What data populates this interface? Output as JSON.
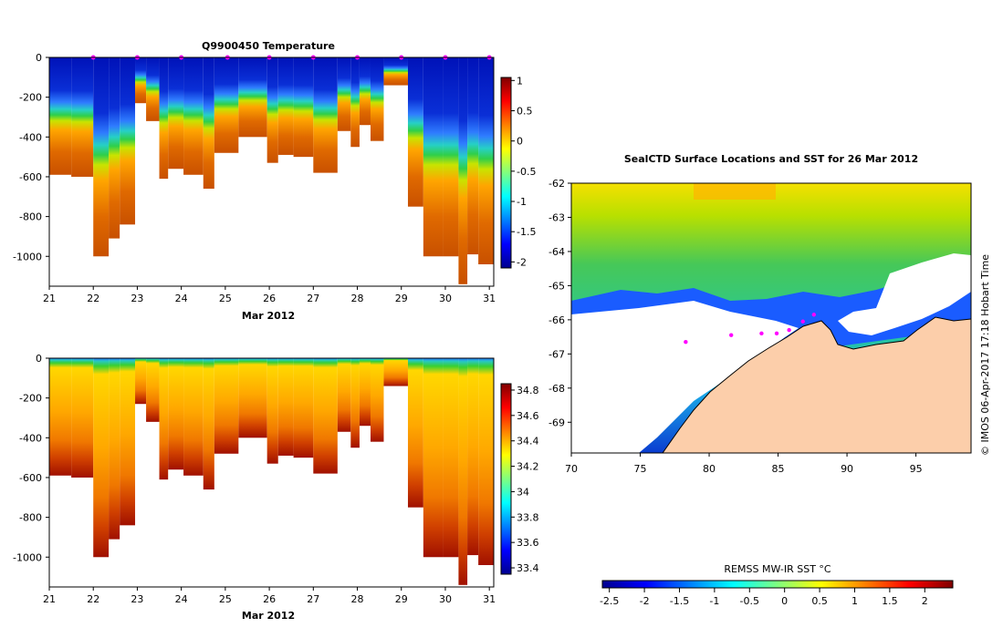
{
  "chart_data": [
    {
      "type": "heatmap",
      "title": "Q9900450  Temperature",
      "xlabel": "Mar 2012",
      "ylabel": "",
      "x_ticks": [
        "21",
        "22",
        "23",
        "24",
        "25",
        "26",
        "27",
        "28",
        "29",
        "30",
        "31"
      ],
      "xlim": [
        21,
        31.1
      ],
      "y_ticks": [
        "0",
        "-200",
        "-400",
        "-600",
        "-800",
        "-1000"
      ],
      "ylim": [
        -1150,
        0
      ],
      "colorbar": {
        "ticks": [
          "1",
          "0.5",
          "0",
          "-0.5",
          "-1",
          "-1.5",
          "-2"
        ],
        "range": [
          -2.1,
          1.05
        ]
      },
      "surface_markers_day": [
        22,
        23,
        24,
        25.05,
        26,
        27,
        28,
        29,
        30,
        31
      ],
      "profiles": [
        {
          "day": 21.0,
          "max_depth": 590
        },
        {
          "day": 21.5,
          "max_depth": 600
        },
        {
          "day": 22.0,
          "max_depth": 1000
        },
        {
          "day": 22.35,
          "max_depth": 910
        },
        {
          "day": 22.6,
          "max_depth": 840
        },
        {
          "day": 22.95,
          "max_depth": 230
        },
        {
          "day": 23.2,
          "max_depth": 320
        },
        {
          "day": 23.5,
          "max_depth": 610
        },
        {
          "day": 23.7,
          "max_depth": 560
        },
        {
          "day": 24.05,
          "max_depth": 590
        },
        {
          "day": 24.5,
          "max_depth": 660
        },
        {
          "day": 24.75,
          "max_depth": 480
        },
        {
          "day": 25.3,
          "max_depth": 400
        },
        {
          "day": 25.95,
          "max_depth": 530
        },
        {
          "day": 26.2,
          "max_depth": 490
        },
        {
          "day": 26.55,
          "max_depth": 500
        },
        {
          "day": 27.0,
          "max_depth": 580
        },
        {
          "day": 27.55,
          "max_depth": 370
        },
        {
          "day": 27.85,
          "max_depth": 450
        },
        {
          "day": 28.05,
          "max_depth": 340
        },
        {
          "day": 28.3,
          "max_depth": 420
        },
        {
          "day": 28.6,
          "max_depth": 140
        },
        {
          "day": 29.15,
          "max_depth": 750
        },
        {
          "day": 29.5,
          "max_depth": 1000
        },
        {
          "day": 29.95,
          "max_depth": 1000
        },
        {
          "day": 30.3,
          "max_depth": 1140
        },
        {
          "day": 30.5,
          "max_depth": 990
        },
        {
          "day": 30.75,
          "max_depth": 1040
        }
      ]
    },
    {
      "type": "heatmap",
      "title": "",
      "xlabel": "Mar 2012",
      "ylabel": "",
      "x_ticks": [
        "21",
        "22",
        "23",
        "24",
        "25",
        "26",
        "27",
        "28",
        "29",
        "30",
        "31"
      ],
      "xlim": [
        21,
        31.1
      ],
      "y_ticks": [
        "0",
        "-200",
        "-400",
        "-600",
        "-800",
        "-1000"
      ],
      "ylim": [
        -1150,
        0
      ],
      "colorbar": {
        "ticks": [
          "34.8",
          "34.6",
          "34.4",
          "34.2",
          "34",
          "33.8",
          "33.6",
          "33.4"
        ],
        "range": [
          33.35,
          34.85
        ]
      }
    },
    {
      "type": "heatmap",
      "title": "SealCTD Surface Locations and SST for 26 Mar 2012",
      "xlabel": "",
      "ylabel": "",
      "x_ticks": [
        "70",
        "75",
        "80",
        "85",
        "90",
        "95"
      ],
      "xlim": [
        70,
        99
      ],
      "y_ticks": [
        "-62",
        "-63",
        "-64",
        "-65",
        "-66",
        "-67",
        "-68",
        "-69"
      ],
      "ylim": [
        -69.9,
        -62
      ],
      "seal_track": [
        {
          "lon": 87.6,
          "lat": -65.85
        },
        {
          "lon": 86.8,
          "lat": -66.05
        },
        {
          "lon": 85.8,
          "lat": -66.3
        },
        {
          "lon": 84.9,
          "lat": -66.4
        },
        {
          "lon": 83.8,
          "lat": -66.4
        },
        {
          "lon": 81.6,
          "lat": -66.45
        },
        {
          "lon": 78.3,
          "lat": -66.65
        }
      ],
      "colorbar": {
        "label": "REMSS MW-IR SST °C",
        "ticks": [
          "-2.5",
          "-2",
          "-1.5",
          "-1",
          "-0.5",
          "0",
          "0.5",
          "1",
          "1.5",
          "2"
        ],
        "range": [
          -2.6,
          2.4
        ]
      },
      "credit": "©  IMOS 06-Apr-2017 17:18 Hobart Time"
    }
  ]
}
